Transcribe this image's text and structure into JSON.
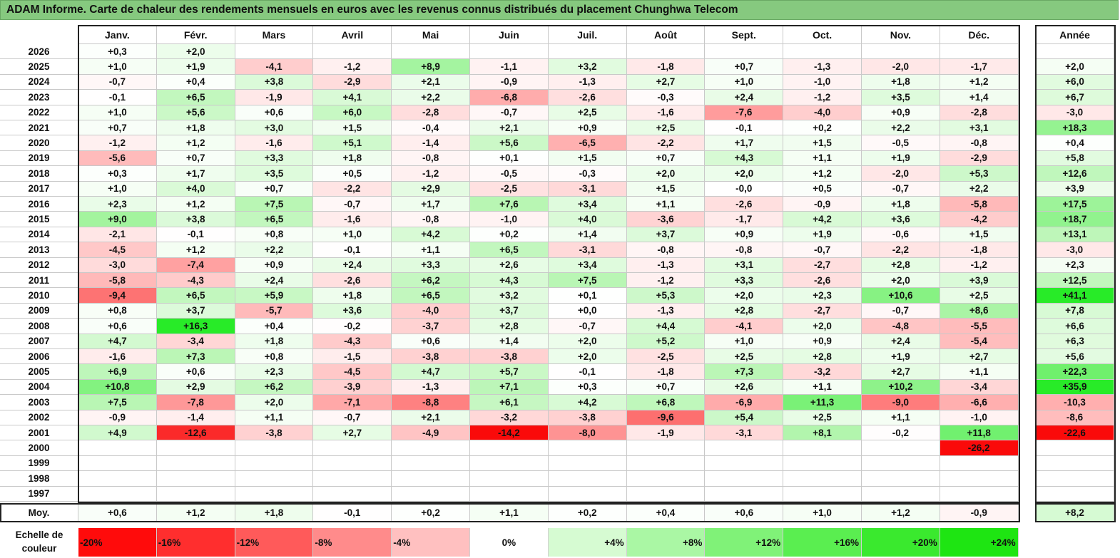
{
  "title": "ADAM Informe. Carte de chaleur des rendements mensuels en euros avec les revenus connus distribués du placement Chunghwa Telecom",
  "chart_data": {
    "type": "heatmap",
    "title": "ADAM Informe. Carte de chaleur des rendements mensuels en euros avec les revenus connus distribués du placement Chunghwa Telecom",
    "columns": [
      "Janv.",
      "Févr.",
      "Mars",
      "Avril",
      "Mai",
      "Juin",
      "Juil.",
      "Août",
      "Sept.",
      "Oct.",
      "Nov.",
      "Déc."
    ],
    "year_column": "Année",
    "rows": [
      {
        "year": "2026",
        "months": [
          "+0,3",
          "+2,0",
          "",
          "",
          "",
          "",
          "",
          "",
          "",
          "",
          "",
          ""
        ],
        "annual": ""
      },
      {
        "year": "2025",
        "months": [
          "+1,0",
          "+1,9",
          "-4,1",
          "-1,2",
          "+8,9",
          "-1,1",
          "+3,2",
          "-1,8",
          "+0,7",
          "-1,3",
          "-2,0",
          "-1,7"
        ],
        "annual": "+2,0"
      },
      {
        "year": "2024",
        "months": [
          "-0,7",
          "+0,4",
          "+3,8",
          "-2,9",
          "+2,1",
          "-0,9",
          "-1,3",
          "+2,7",
          "+1,0",
          "-1,0",
          "+1,8",
          "+1,2"
        ],
        "annual": "+6,0"
      },
      {
        "year": "2023",
        "months": [
          "-0,1",
          "+6,5",
          "-1,9",
          "+4,1",
          "+2,2",
          "-6,8",
          "-2,6",
          "-0,3",
          "+2,4",
          "-1,2",
          "+3,5",
          "+1,4"
        ],
        "annual": "+6,7"
      },
      {
        "year": "2022",
        "months": [
          "+1,0",
          "+5,6",
          "+0,6",
          "+6,0",
          "-2,8",
          "-0,7",
          "+2,5",
          "-1,6",
          "-7,6",
          "-4,0",
          "+0,9",
          "-2,8"
        ],
        "annual": "-3,0"
      },
      {
        "year": "2021",
        "months": [
          "+0,7",
          "+1,8",
          "+3,0",
          "+1,5",
          "-0,4",
          "+2,1",
          "+0,9",
          "+2,5",
          "-0,1",
          "+0,2",
          "+2,2",
          "+3,1"
        ],
        "annual": "+18,3"
      },
      {
        "year": "2020",
        "months": [
          "-1,2",
          "+1,2",
          "-1,6",
          "+5,1",
          "-1,4",
          "+5,6",
          "-6,5",
          "-2,2",
          "+1,7",
          "+1,5",
          "-0,5",
          "-0,8"
        ],
        "annual": "+0,4"
      },
      {
        "year": "2019",
        "months": [
          "-5,6",
          "+0,7",
          "+3,3",
          "+1,8",
          "-0,8",
          "+0,1",
          "+1,5",
          "+0,7",
          "+4,3",
          "+1,1",
          "+1,9",
          "-2,9"
        ],
        "annual": "+5,8"
      },
      {
        "year": "2018",
        "months": [
          "+0,3",
          "+1,7",
          "+3,5",
          "+0,5",
          "-1,2",
          "-0,5",
          "-0,3",
          "+2,0",
          "+2,0",
          "+1,2",
          "-2,0",
          "+5,3"
        ],
        "annual": "+12,6"
      },
      {
        "year": "2017",
        "months": [
          "+1,0",
          "+4,0",
          "+0,7",
          "-2,2",
          "+2,9",
          "-2,5",
          "-3,1",
          "+1,5",
          "-0,0",
          "+0,5",
          "-0,7",
          "+2,2"
        ],
        "annual": "+3,9"
      },
      {
        "year": "2016",
        "months": [
          "+2,3",
          "+1,2",
          "+7,5",
          "-0,7",
          "+1,7",
          "+7,6",
          "+3,4",
          "+1,1",
          "-2,6",
          "-0,9",
          "+1,8",
          "-5,8"
        ],
        "annual": "+17,5"
      },
      {
        "year": "2015",
        "months": [
          "+9,0",
          "+3,8",
          "+6,5",
          "-1,6",
          "-0,8",
          "-1,0",
          "+4,0",
          "-3,6",
          "-1,7",
          "+4,2",
          "+3,6",
          "-4,2"
        ],
        "annual": "+18,7"
      },
      {
        "year": "2014",
        "months": [
          "-2,1",
          "-0,1",
          "+0,8",
          "+1,0",
          "+4,2",
          "+0,2",
          "+1,4",
          "+3,7",
          "+0,9",
          "+1,9",
          "-0,6",
          "+1,5"
        ],
        "annual": "+13,1"
      },
      {
        "year": "2013",
        "months": [
          "-4,5",
          "+1,2",
          "+2,2",
          "-0,1",
          "+1,1",
          "+6,5",
          "-3,1",
          "-0,8",
          "-0,8",
          "-0,7",
          "-2,2",
          "-1,8"
        ],
        "annual": "-3,0"
      },
      {
        "year": "2012",
        "months": [
          "-3,0",
          "-7,4",
          "+0,9",
          "+2,4",
          "+3,3",
          "+2,6",
          "+3,4",
          "-1,3",
          "+3,1",
          "-2,7",
          "+2,8",
          "-1,2"
        ],
        "annual": "+2,3"
      },
      {
        "year": "2011",
        "months": [
          "-5,8",
          "-4,3",
          "+2,4",
          "-2,6",
          "+6,2",
          "+4,3",
          "+7,5",
          "-1,2",
          "+3,3",
          "-2,6",
          "+2,0",
          "+3,9"
        ],
        "annual": "+12,5"
      },
      {
        "year": "2010",
        "months": [
          "-9,4",
          "+6,5",
          "+5,9",
          "+1,8",
          "+6,5",
          "+3,2",
          "+0,1",
          "+5,3",
          "+2,0",
          "+2,3",
          "+10,6",
          "+2,5"
        ],
        "annual": "+41,1"
      },
      {
        "year": "2009",
        "months": [
          "+0,8",
          "+3,7",
          "-5,7",
          "+3,6",
          "-4,0",
          "+3,7",
          "+0,0",
          "-1,3",
          "+2,8",
          "-2,7",
          "-0,7",
          "+8,6"
        ],
        "annual": "+7,8"
      },
      {
        "year": "2008",
        "months": [
          "+0,6",
          "+16,3",
          "+0,4",
          "-0,2",
          "-3,7",
          "+2,8",
          "-0,7",
          "+4,4",
          "-4,1",
          "+2,0",
          "-4,8",
          "-5,5"
        ],
        "annual": "+6,6"
      },
      {
        "year": "2007",
        "months": [
          "+4,7",
          "-3,4",
          "+1,8",
          "-4,3",
          "+0,6",
          "+1,4",
          "+2,0",
          "+5,2",
          "+1,0",
          "+0,9",
          "+2,4",
          "-5,4"
        ],
        "annual": "+6,3"
      },
      {
        "year": "2006",
        "months": [
          "-1,6",
          "+7,3",
          "+0,8",
          "-1,5",
          "-3,8",
          "-3,8",
          "+2,0",
          "-2,5",
          "+2,5",
          "+2,8",
          "+1,9",
          "+2,7"
        ],
        "annual": "+5,6"
      },
      {
        "year": "2005",
        "months": [
          "+6,9",
          "+0,6",
          "+2,3",
          "-4,5",
          "+4,7",
          "+5,7",
          "-0,1",
          "-1,8",
          "+7,3",
          "-3,2",
          "+2,7",
          "+1,1"
        ],
        "annual": "+22,3"
      },
      {
        "year": "2004",
        "months": [
          "+10,8",
          "+2,9",
          "+6,2",
          "-3,9",
          "-1,3",
          "+7,1",
          "+0,3",
          "+0,7",
          "+2,6",
          "+1,1",
          "+10,2",
          "-3,4"
        ],
        "annual": "+35,9"
      },
      {
        "year": "2003",
        "months": [
          "+7,5",
          "-7,8",
          "+2,0",
          "-7,1",
          "-8,8",
          "+6,1",
          "+4,2",
          "+6,8",
          "-6,9",
          "+11,3",
          "-9,0",
          "-6,6"
        ],
        "annual": "-10,3"
      },
      {
        "year": "2002",
        "months": [
          "-0,9",
          "-1,4",
          "+1,1",
          "-0,7",
          "+2,1",
          "-3,2",
          "-3,8",
          "-9,6",
          "+5,4",
          "+2,5",
          "+1,1",
          "-1,0"
        ],
        "annual": "-8,6"
      },
      {
        "year": "2001",
        "months": [
          "+4,9",
          "-12,6",
          "-3,8",
          "+2,7",
          "-4,9",
          "-14,2",
          "-8,0",
          "-1,9",
          "-3,1",
          "+8,1",
          "-0,2",
          "+11,8"
        ],
        "annual": "-22,6"
      },
      {
        "year": "2000",
        "months": [
          "",
          "",
          "",
          "",
          "",
          "",
          "",
          "",
          "",
          "",
          "",
          "-26,2"
        ],
        "annual": ""
      },
      {
        "year": "1999",
        "months": [
          "",
          "",
          "",
          "",
          "",
          "",
          "",
          "",
          "",
          "",
          "",
          ""
        ],
        "annual": ""
      },
      {
        "year": "1998",
        "months": [
          "",
          "",
          "",
          "",
          "",
          "",
          "",
          "",
          "",
          "",
          "",
          ""
        ],
        "annual": ""
      },
      {
        "year": "1997",
        "months": [
          "",
          "",
          "",
          "",
          "",
          "",
          "",
          "",
          "",
          "",
          "",
          ""
        ],
        "annual": ""
      }
    ],
    "average": {
      "label": "Moy.",
      "months": [
        "+0,6",
        "+1,2",
        "+1,8",
        "-0,1",
        "+0,2",
        "+1,1",
        "+0,2",
        "+0,4",
        "+0,6",
        "+1,0",
        "+1,2",
        "-0,9"
      ],
      "annual": "+8,2"
    },
    "color_scale": {
      "label": "Echelle de couleur",
      "steps": [
        "-20%",
        "-16%",
        "-12%",
        "-8%",
        "-4%",
        "0%",
        "+4%",
        "+8%",
        "+12%",
        "+16%",
        "+20%",
        "+24%"
      ]
    }
  }
}
